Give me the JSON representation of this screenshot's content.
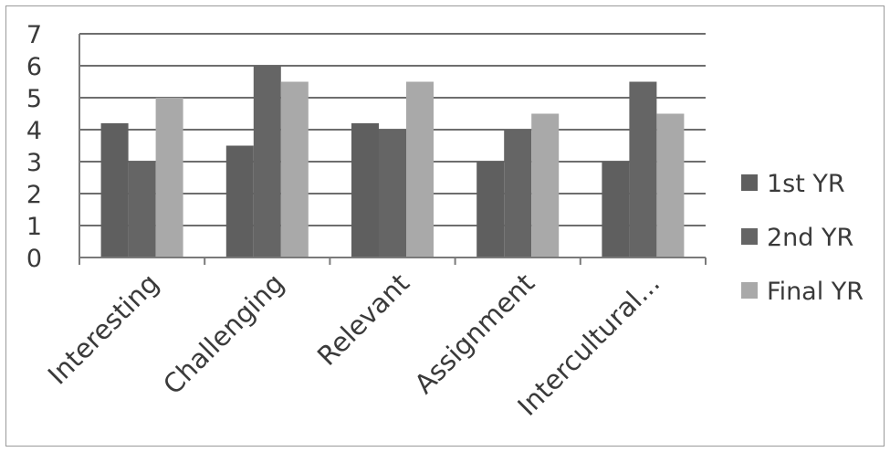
{
  "chart_data": {
    "type": "bar",
    "categories": [
      "Interesting",
      "Challenging",
      "Relevant",
      "Assignment",
      "Intercultural..."
    ],
    "series": [
      {
        "name": "1st YR",
        "values": [
          4.2,
          3.5,
          4.2,
          3.0,
          3.0
        ]
      },
      {
        "name": "2nd YR",
        "values": [
          3.0,
          6.0,
          4.0,
          4.0,
          5.5
        ]
      },
      {
        "name": "Final YR",
        "values": [
          5.0,
          5.5,
          5.5,
          4.5,
          4.5
        ]
      }
    ],
    "ylim": [
      0,
      7
    ],
    "yticks": [
      "0",
      "1",
      "2",
      "3",
      "4",
      "5",
      "6",
      "7"
    ],
    "grid": true,
    "legend_position": "right",
    "colors": {
      "1st YR": "#5f5f5f",
      "2nd YR": "#656565",
      "Final YR": "#a9a9a9",
      "grid": "#6e6e6e"
    }
  }
}
